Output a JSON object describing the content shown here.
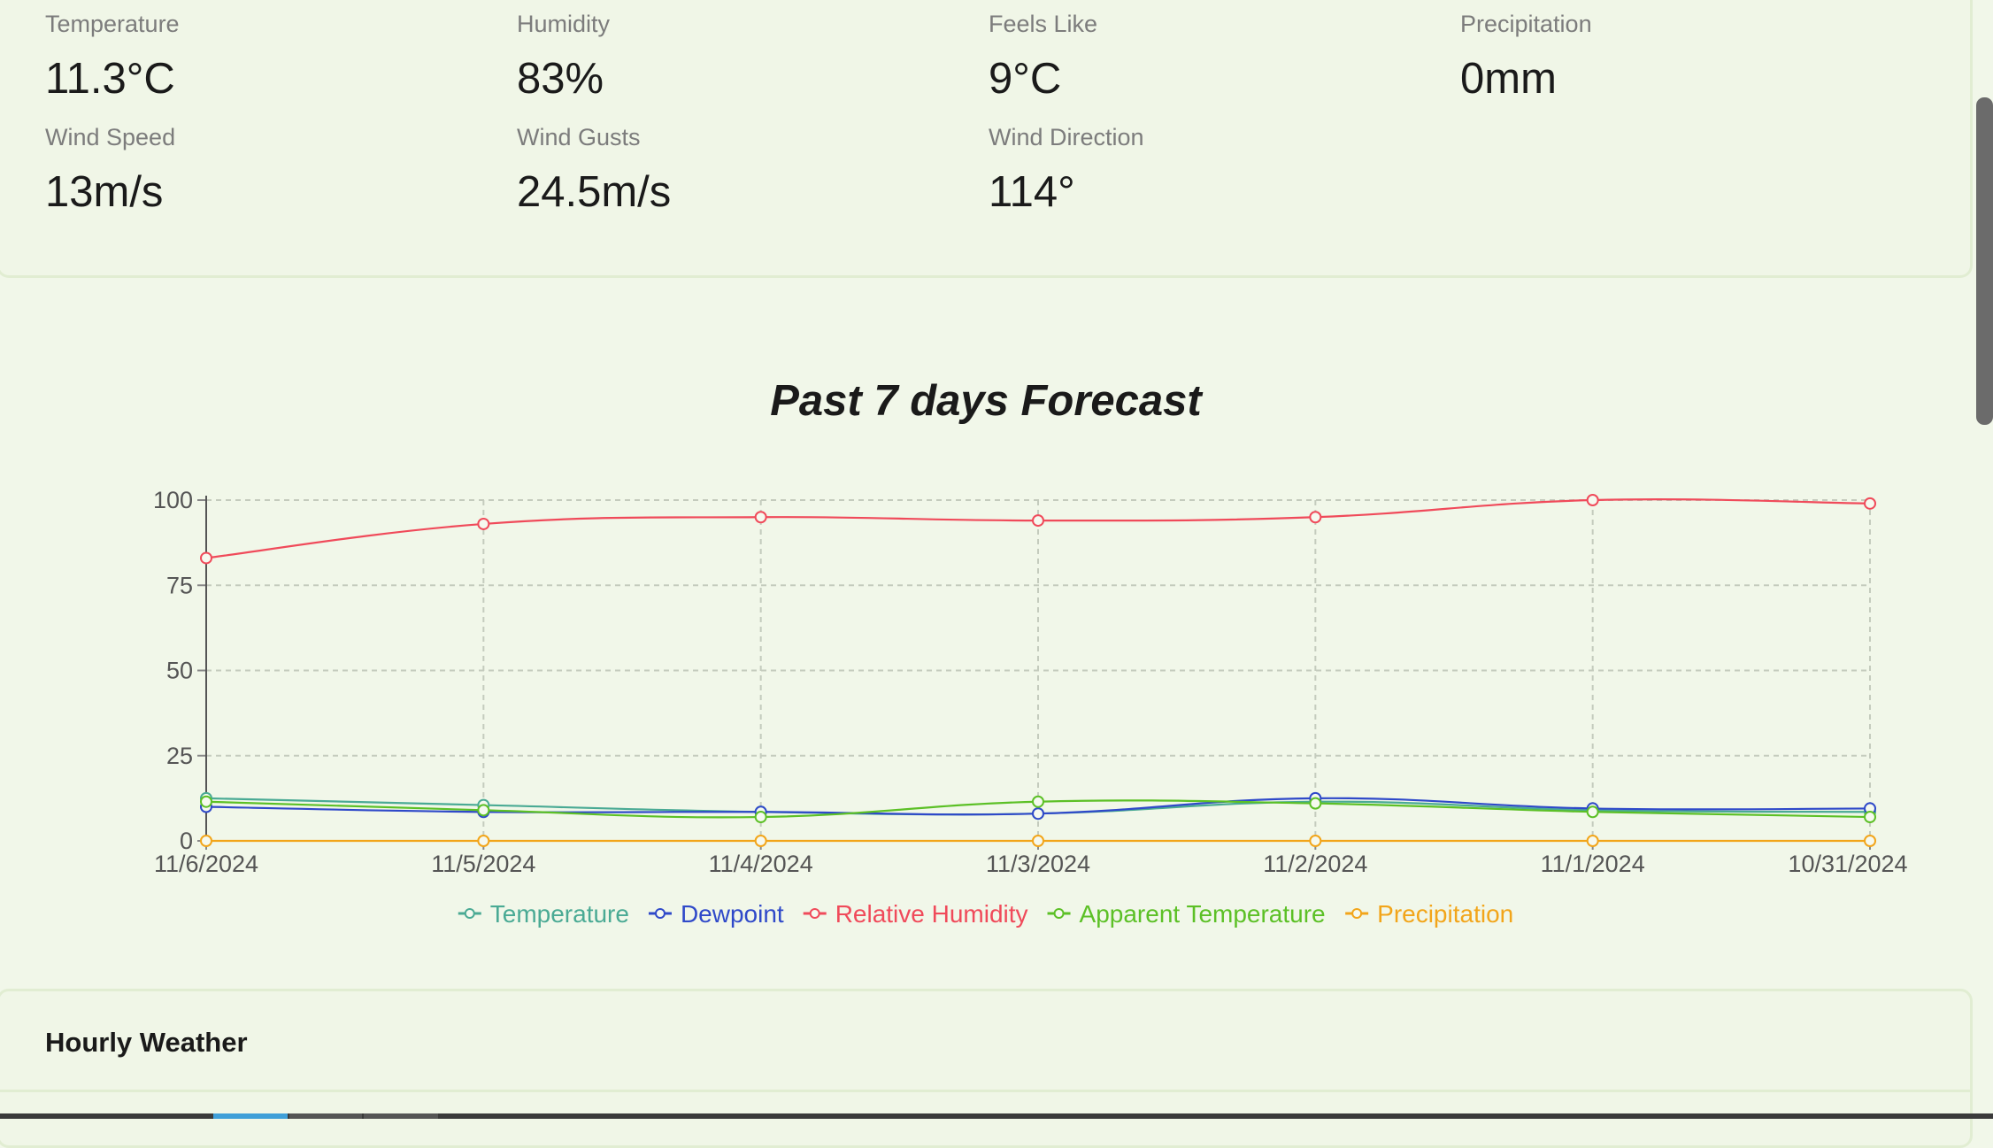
{
  "current": {
    "temperature": {
      "label": "Temperature",
      "value": "11.3°C"
    },
    "humidity": {
      "label": "Humidity",
      "value": "83%"
    },
    "feels_like": {
      "label": "Feels Like",
      "value": "9°C"
    },
    "precipitation": {
      "label": "Precipitation",
      "value": "0mm"
    },
    "wind_speed": {
      "label": "Wind Speed",
      "value": "13m/s"
    },
    "wind_gusts": {
      "label": "Wind Gusts",
      "value": "24.5m/s"
    },
    "wind_direction": {
      "label": "Wind Direction",
      "value": "114°"
    }
  },
  "chart_data": {
    "type": "line",
    "title": "Past 7 days Forecast",
    "xlabel": "",
    "ylabel": "",
    "categories": [
      "11/6/2024",
      "11/5/2024",
      "11/4/2024",
      "11/3/2024",
      "11/2/2024",
      "11/1/2024",
      "10/31/2024"
    ],
    "ylim": [
      0,
      100
    ],
    "yticks": [
      0,
      25,
      50,
      75,
      100
    ],
    "grid": true,
    "legend_position": "bottom",
    "series": [
      {
        "name": "Temperature",
        "color": "#4aaa94",
        "values": [
          12.5,
          10.5,
          8.5,
          8,
          11.5,
          9,
          8.5
        ]
      },
      {
        "name": "Dewpoint",
        "color": "#2f49c9",
        "values": [
          10,
          8.5,
          8.5,
          8,
          12.5,
          9.5,
          9.5
        ]
      },
      {
        "name": "Relative Humidity",
        "color": "#f04a5a",
        "values": [
          83,
          93,
          95,
          94,
          95,
          100,
          99
        ]
      },
      {
        "name": "Apparent Temperature",
        "color": "#5cc026",
        "values": [
          11.5,
          9,
          7,
          11.5,
          11,
          8.5,
          7
        ]
      },
      {
        "name": "Precipitation",
        "color": "#f2a51a",
        "values": [
          0,
          0,
          0,
          0,
          0,
          0,
          0
        ]
      }
    ]
  },
  "hourly": {
    "title": "Hourly Weather"
  },
  "colors": {
    "background": "#f1f7e9",
    "card_border": "#e1edd2"
  }
}
